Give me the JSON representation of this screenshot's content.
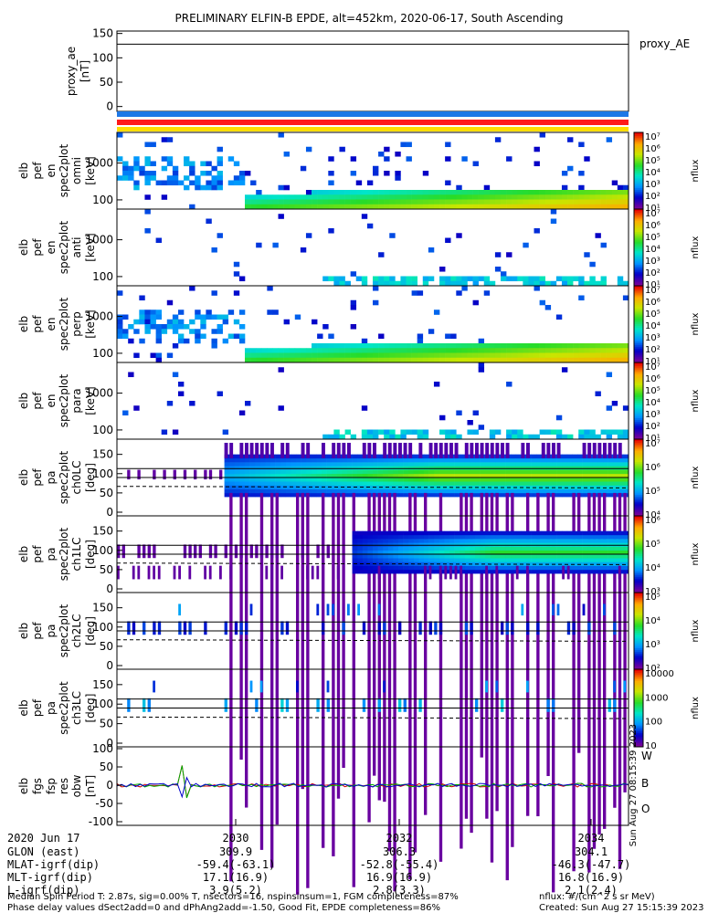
{
  "title": "PRELIMINARY ELFIN-B EPDE, alt=452km, 2020-06-17, South Ascending",
  "colors": {
    "bar_blue": "#1e78e6",
    "bar_red": "#ff1a1a",
    "bar_yellow": "#ffdd00",
    "bg": "#ffffff",
    "spec_min": "#7a0099",
    "spec_max": "#cc0000"
  },
  "chart_data": [
    {
      "type": "line",
      "name": "proxy_ae",
      "ylabel": "proxy_ae [nT]",
      "legend": "proxy_AE",
      "yticks": [
        "150",
        "100",
        "50",
        "0"
      ],
      "ylim": [
        -10,
        155
      ],
      "values": [
        128,
        128
      ],
      "xlim_label": "2020 Jun 17 ~20:28–20:35"
    },
    {
      "type": "heatmap",
      "name": "elb_pef_en_spec2plot_omni",
      "ylabel": [
        "elb",
        "pef",
        "en",
        "spec2plot",
        "omni",
        "[keV]"
      ],
      "yticks": [
        "1000",
        "100"
      ],
      "scale": "log",
      "colorbar": {
        "label": "nflux",
        "ticks": [
          "10⁷",
          "10⁶",
          "10⁵",
          "10⁴",
          "10³",
          "10²",
          "10¹"
        ]
      }
    },
    {
      "type": "heatmap",
      "name": "elb_pef_en_spec2plot_anti",
      "ylabel": [
        "elb",
        "pef",
        "en",
        "spec2plot",
        "anti",
        "[keV]"
      ],
      "yticks": [
        "1000",
        "100"
      ],
      "scale": "log",
      "colorbar": {
        "label": "nflux",
        "ticks": [
          "10⁷",
          "10⁶",
          "10⁵",
          "10⁴",
          "10³",
          "10²",
          "10¹"
        ]
      }
    },
    {
      "type": "heatmap",
      "name": "elb_pef_en_spec2plot_perp",
      "ylabel": [
        "elb",
        "pef",
        "en",
        "spec2plot",
        "perp",
        "[keV]"
      ],
      "yticks": [
        "1000",
        "100"
      ],
      "scale": "log",
      "colorbar": {
        "label": "nflux",
        "ticks": [
          "10⁷",
          "10⁶",
          "10⁵",
          "10⁴",
          "10³",
          "10²",
          "10¹"
        ]
      }
    },
    {
      "type": "heatmap",
      "name": "elb_pef_en_spec2plot_para",
      "ylabel": [
        "elb",
        "pef",
        "en",
        "spec2plot",
        "para",
        "[keV]"
      ],
      "yticks": [
        "1000",
        "100"
      ],
      "scale": "log",
      "colorbar": {
        "label": "nflux",
        "ticks": [
          "10⁷",
          "10⁶",
          "10⁵",
          "10⁴",
          "10³",
          "10²",
          "10¹"
        ]
      }
    },
    {
      "type": "heatmap",
      "name": "elb_pef_pa_spec2plot_ch0LC",
      "ylabel": [
        "elb",
        "pef",
        "pa",
        "spec2plot",
        "ch0LC",
        "[deg]"
      ],
      "yticks": [
        "150",
        "100",
        "50",
        "0"
      ],
      "ylim": [
        0,
        180
      ],
      "colorbar": {
        "label": "nflux",
        "ticks": [
          "10⁷",
          "10⁶",
          "10⁵",
          "10⁴"
        ]
      }
    },
    {
      "type": "heatmap",
      "name": "elb_pef_pa_spec2plot_ch1LC",
      "ylabel": [
        "elb",
        "pef",
        "pa",
        "spec2plot",
        "ch1LC",
        "[deg]"
      ],
      "yticks": [
        "150",
        "100",
        "50",
        "0"
      ],
      "ylim": [
        0,
        180
      ],
      "colorbar": {
        "label": "nflux",
        "ticks": [
          "10⁶",
          "10⁵",
          "10⁴",
          "10³"
        ]
      }
    },
    {
      "type": "heatmap",
      "name": "elb_pef_pa_spec2plot_ch2LC",
      "ylabel": [
        "elb",
        "pef",
        "pa",
        "spec2plot",
        "ch2LC",
        "[deg]"
      ],
      "yticks": [
        "150",
        "100",
        "50",
        "0"
      ],
      "ylim": [
        0,
        180
      ],
      "colorbar": {
        "label": "nflux",
        "ticks": [
          "10⁵",
          "10⁴",
          "10³",
          "10²"
        ]
      }
    },
    {
      "type": "heatmap",
      "name": "elb_pef_pa_spec2plot_ch3LC",
      "ylabel": [
        "elb",
        "pef",
        "pa",
        "spec2plot",
        "ch3LC",
        "[deg]"
      ],
      "yticks": [
        "150",
        "100",
        "50",
        "0"
      ],
      "ylim": [
        0,
        180
      ],
      "colorbar": {
        "label": "nflux",
        "ticks": [
          "10000",
          "1000",
          "100",
          "10"
        ]
      }
    },
    {
      "type": "line",
      "name": "elb_fgs_fsp_res_obw",
      "ylabel": [
        "elb",
        "fgs",
        "fsp",
        "res",
        "obw",
        "[nT]"
      ],
      "yticks": [
        "100",
        "50",
        "0",
        "-50",
        "-100"
      ],
      "ylim": [
        -110,
        105
      ],
      "legend": [
        "W",
        "B",
        "O"
      ],
      "stamp": "Sun Aug 27 08:15:39 2023"
    }
  ],
  "xaxis": {
    "date_label": "2020 Jun 17",
    "ticks": [
      "2030",
      "2032",
      "2034"
    ],
    "rows": [
      {
        "label": "GLON (east)",
        "values": [
          "309.9",
          "306.3",
          "304.1"
        ]
      },
      {
        "label": "MLAT-igrf(dip)",
        "values": [
          "-59.4(-63.1)",
          "-52.8(-55.4)",
          "-46.3(-47.7)"
        ]
      },
      {
        "label": "MLT-igrf(dip)",
        "values": [
          "17.1(16.9)",
          "16.9(16.9)",
          "16.8(16.9)"
        ]
      },
      {
        "label": "L-igrf(dip)",
        "values": [
          "3.9(5.2)",
          "2.8(3.3)",
          "2.1(2.4)"
        ]
      }
    ]
  },
  "footer": {
    "line1": "Median Spin Period T: 2.87s, sig=0.00% T, nsectors=16, nspinsinsum=1, FGM completeness=87%",
    "line2": "Phase delay values dSect2add=0 and dPhAng2add=-1.50, Good Fit, EPDE completeness=86%",
    "right1": "nflux: #/(cm^2 s sr MeV)",
    "right2": "Created: Sun Aug 27 15:15:39 2023"
  }
}
